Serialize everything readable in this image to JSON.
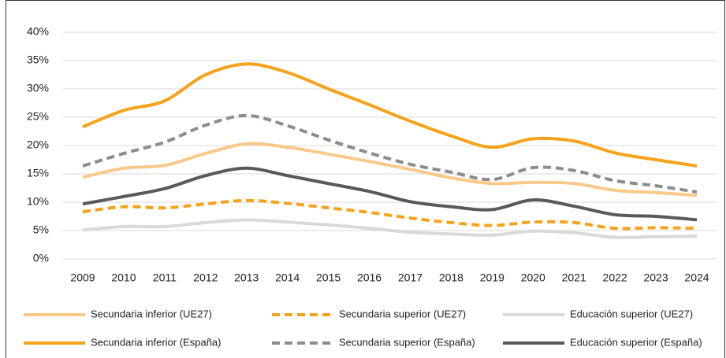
{
  "chart_data": {
    "type": "line",
    "categories": [
      "2009",
      "2010",
      "2011",
      "2012",
      "2013",
      "2014",
      "2015",
      "2016",
      "2017",
      "2018",
      "2019",
      "2020",
      "2021",
      "2022",
      "2023",
      "2024"
    ],
    "ylim": [
      0,
      40
    ],
    "yticks": [
      {
        "value": 0,
        "label": "0%"
      },
      {
        "value": 5,
        "label": "5%"
      },
      {
        "value": 10,
        "label": "10%"
      },
      {
        "value": 15,
        "label": "15%"
      },
      {
        "value": 20,
        "label": "20%"
      },
      {
        "value": 25,
        "label": "25%"
      },
      {
        "value": 30,
        "label": "30%"
      },
      {
        "value": 35,
        "label": "35%"
      },
      {
        "value": 40,
        "label": "40%"
      }
    ],
    "grid": true,
    "legend": "bottom",
    "series": [
      {
        "name": "Secundaria inferior (UE27)",
        "color": "#f9c98a",
        "dashed": false,
        "values": [
          14.4,
          16,
          16.5,
          18.6,
          20.3,
          19.7,
          18.5,
          17.2,
          15.8,
          14.3,
          13.3,
          13.5,
          13.3,
          12.1,
          11.7,
          11.2
        ]
      },
      {
        "name": "Secundaria superior (UE27)",
        "color": "#f7a21b",
        "dashed": true,
        "values": [
          8.3,
          9.2,
          9,
          9.7,
          10.3,
          9.8,
          9,
          8.2,
          7.2,
          6.4,
          5.9,
          6.5,
          6.4,
          5.4,
          5.5,
          5.4
        ]
      },
      {
        "name": "Educación superior (UE27)",
        "color": "#d9d9d9",
        "dashed": false,
        "values": [
          5.1,
          5.7,
          5.7,
          6.4,
          6.9,
          6.5,
          6,
          5.4,
          4.7,
          4.4,
          4.2,
          4.9,
          4.6,
          3.8,
          3.9,
          4
        ]
      },
      {
        "name": "Secundaria inferior (España)",
        "color": "#f7a21b",
        "dashed": false,
        "values": [
          23.3,
          26.2,
          27.9,
          32.5,
          34.4,
          32.9,
          30,
          27.2,
          24.3,
          21.7,
          19.7,
          21.2,
          20.8,
          18.7,
          17.5,
          16.4
        ]
      },
      {
        "name": "Secundaria superior (España)",
        "color": "#8c8c8c",
        "dashed": true,
        "values": [
          16.4,
          18.6,
          20.6,
          23.6,
          25.3,
          23.5,
          21,
          18.7,
          16.7,
          15.3,
          14,
          16.1,
          15.6,
          13.8,
          12.9,
          11.8
        ]
      },
      {
        "name": "Educación superior (España)",
        "color": "#595959",
        "dashed": false,
        "values": [
          9.7,
          11,
          12.4,
          14.7,
          16,
          14.7,
          13.3,
          11.9,
          10.1,
          9.2,
          8.7,
          10.4,
          9.3,
          7.8,
          7.5,
          6.9
        ]
      }
    ]
  }
}
